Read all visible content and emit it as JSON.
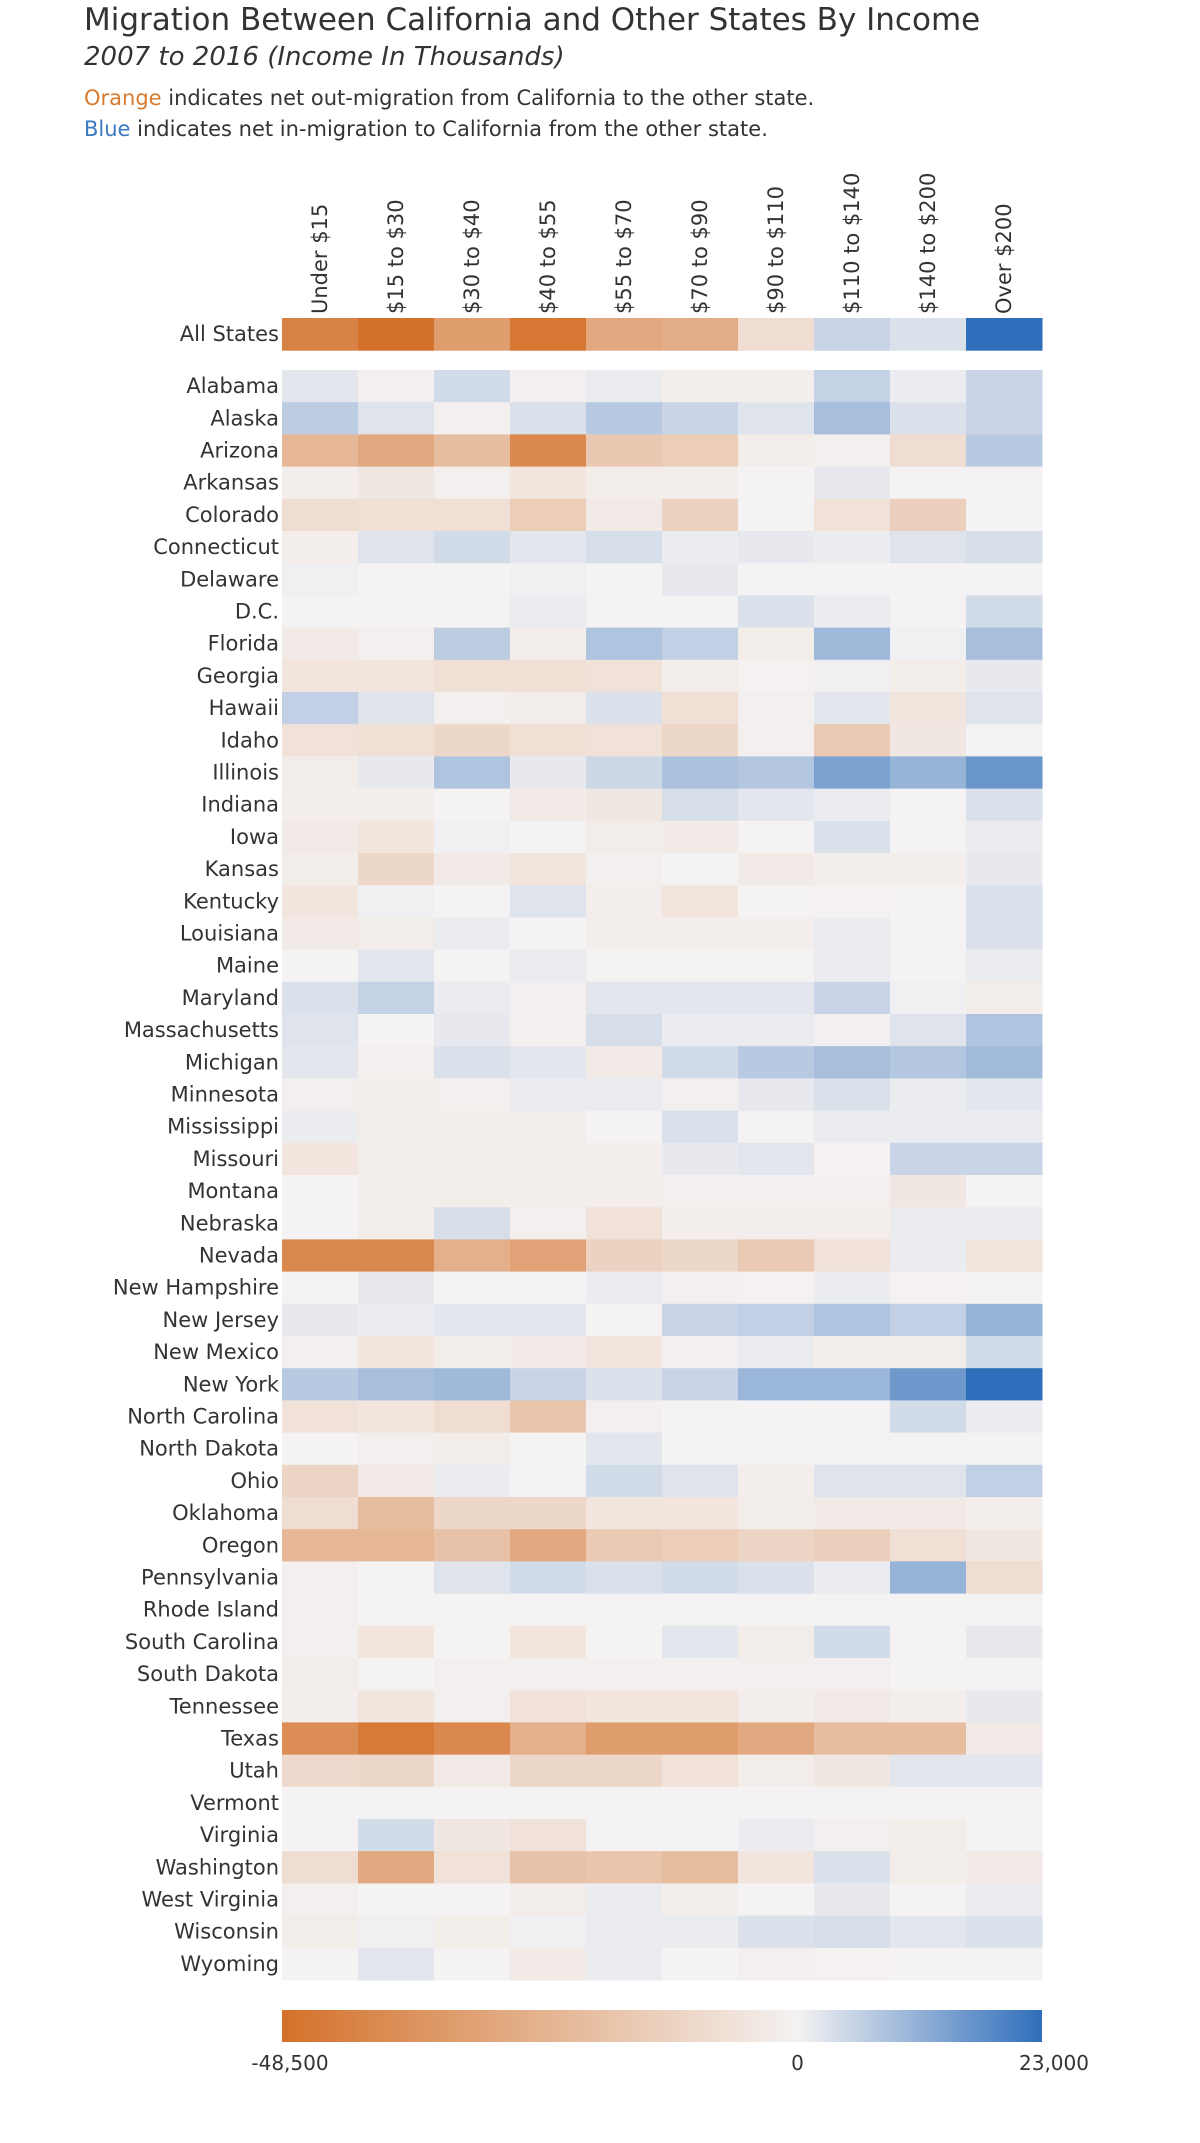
{
  "title": "Migration Between California and Other States By Income",
  "subtitle": "2007 to 2016 (Income In Thousands)",
  "note_orange": {
    "keyword": "Orange",
    "text": " indicates net out-migration from California to the other state."
  },
  "note_blue": {
    "keyword": "Blue",
    "text": " indicates net in-migration to California from the other state."
  },
  "colors": {
    "orange": "#d4712a",
    "neutral": "#f4f2f2",
    "blue": "#2f6ebb"
  },
  "chart_data": {
    "type": "heatmap",
    "columns": [
      "Under $15",
      "$15 to $30",
      "$30 to $40",
      "$40 to $55",
      "$55 to $70",
      "$70 to $90",
      "$90 to $110",
      "$110 to $140",
      "$140 to $200",
      "Over $200"
    ],
    "summary_row": {
      "label": "All States",
      "values": [
        -42000,
        -48500,
        -32000,
        -46000,
        -28000,
        -26000,
        -8000,
        5000,
        3000,
        23000
      ]
    },
    "rows": [
      {
        "label": "Alabama",
        "values": [
          2000,
          -1000,
          4000,
          -1000,
          1000,
          -1500,
          -1500,
          5500,
          1000,
          5000
        ]
      },
      {
        "label": "Alaska",
        "values": [
          6500,
          2500,
          -1000,
          3000,
          7000,
          5000,
          2500,
          9000,
          3000,
          5000
        ]
      },
      {
        "label": "Arizona",
        "values": [
          -22000,
          -28000,
          -20000,
          -40000,
          -16000,
          -14000,
          -2000,
          -1000,
          -8000,
          7000
        ]
      },
      {
        "label": "Arkansas",
        "values": [
          -1500,
          -4000,
          -1000,
          -5000,
          -2000,
          -1500,
          0,
          1500,
          0,
          0
        ]
      },
      {
        "label": "Colorado",
        "values": [
          -8000,
          -7000,
          -7000,
          -14000,
          -3000,
          -12000,
          0,
          -6000,
          -13000,
          0
        ]
      },
      {
        "label": "Connecticut",
        "values": [
          -1500,
          2500,
          4000,
          2000,
          3500,
          1000,
          1500,
          1000,
          2500,
          3500
        ]
      },
      {
        "label": "Delaware",
        "values": [
          500,
          0,
          0,
          500,
          0,
          1500,
          0,
          0,
          0,
          0
        ]
      },
      {
        "label": "D.C.",
        "values": [
          0,
          0,
          0,
          1000,
          0,
          0,
          3000,
          1000,
          0,
          4000
        ]
      },
      {
        "label": "Florida",
        "values": [
          -3000,
          -1000,
          6500,
          -2000,
          8000,
          6000,
          -2000,
          10000,
          500,
          9000
        ]
      },
      {
        "label": "Georgia",
        "values": [
          -5000,
          -5000,
          -7000,
          -7000,
          -6000,
          -2000,
          -500,
          500,
          -2000,
          1500
        ]
      },
      {
        "label": "Hawaii",
        "values": [
          6000,
          2500,
          -1000,
          -2000,
          3000,
          -7000,
          -1000,
          2000,
          -5000,
          2500
        ]
      },
      {
        "label": "Idaho",
        "values": [
          -6000,
          -7000,
          -10000,
          -7000,
          -6000,
          -10000,
          -1000,
          -15000,
          -4000,
          0
        ]
      },
      {
        "label": "Illinois",
        "values": [
          -2000,
          1500,
          8000,
          1500,
          4500,
          8500,
          7500,
          14000,
          11000,
          16000
        ]
      },
      {
        "label": "Indiana",
        "values": [
          -1500,
          -1500,
          0,
          -3000,
          -4000,
          3500,
          2000,
          1000,
          0,
          3000
        ]
      },
      {
        "label": "Iowa",
        "values": [
          -3000,
          -5000,
          500,
          0,
          -2000,
          -3000,
          0,
          3000,
          0,
          1000
        ]
      },
      {
        "label": "Kansas",
        "values": [
          -2000,
          -10000,
          -3000,
          -5000,
          -1000,
          0,
          -3000,
          -1500,
          -1500,
          1500
        ]
      },
      {
        "label": "Kentucky",
        "values": [
          -5000,
          500,
          0,
          2500,
          -1500,
          -5000,
          0,
          -500,
          0,
          3000
        ]
      },
      {
        "label": "Louisiana",
        "values": [
          -3000,
          -2000,
          1000,
          0,
          -1500,
          -1500,
          -1500,
          1000,
          0,
          3000
        ]
      },
      {
        "label": "Maine",
        "values": [
          0,
          2000,
          0,
          1000,
          0,
          0,
          0,
          1000,
          0,
          1000
        ]
      },
      {
        "label": "Maryland",
        "values": [
          3000,
          5500,
          1000,
          -1000,
          2000,
          2000,
          2000,
          5000,
          500,
          -2000
        ]
      },
      {
        "label": "Massachusetts",
        "values": [
          2500,
          0,
          1500,
          -1000,
          3500,
          1000,
          1000,
          -1000,
          2500,
          8000
        ]
      },
      {
        "label": "Michigan",
        "values": [
          2000,
          -1000,
          3000,
          2000,
          -3000,
          4000,
          7000,
          9000,
          7500,
          9500
        ]
      },
      {
        "label": "Minnesota",
        "values": [
          -1000,
          -2000,
          -1000,
          1000,
          1000,
          -1000,
          1500,
          3000,
          1000,
          2000
        ]
      },
      {
        "label": "Mississippi",
        "values": [
          1000,
          -2000,
          -2000,
          -1500,
          0,
          3000,
          0,
          1000,
          1000,
          1000
        ]
      },
      {
        "label": "Missouri",
        "values": [
          -5000,
          -2000,
          -2000,
          -1500,
          -1500,
          1500,
          2000,
          -500,
          5000,
          5000
        ]
      },
      {
        "label": "Montana",
        "values": [
          0,
          -2000,
          -1500,
          -2000,
          -1500,
          -1000,
          -1000,
          -1000,
          -4000,
          0
        ]
      },
      {
        "label": "Nebraska",
        "values": [
          0,
          -2000,
          3500,
          -1000,
          -6000,
          -1500,
          -1500,
          -1500,
          1000,
          1000
        ]
      },
      {
        "label": "Nevada",
        "values": [
          -40000,
          -40000,
          -25000,
          -30000,
          -12000,
          -10000,
          -15000,
          -6000,
          1000,
          -5000
        ]
      },
      {
        "label": "New Hampshire",
        "values": [
          0,
          1500,
          0,
          0,
          1000,
          -1000,
          -500,
          1000,
          -500,
          0
        ]
      },
      {
        "label": "New Jersey",
        "values": [
          1500,
          1000,
          2000,
          2000,
          0,
          5000,
          6000,
          8000,
          6000,
          11000
        ]
      },
      {
        "label": "New Mexico",
        "values": [
          -1000,
          -5000,
          -2000,
          -3000,
          -5000,
          -1000,
          1000,
          -1500,
          -2000,
          4000
        ]
      },
      {
        "label": "New York",
        "values": [
          7000,
          9000,
          10000,
          5000,
          3000,
          5000,
          10500,
          10500,
          15500,
          23000
        ]
      },
      {
        "label": "North Carolina",
        "values": [
          -6000,
          -5000,
          -8000,
          -17000,
          -1000,
          0,
          0,
          0,
          4000,
          1000
        ]
      },
      {
        "label": "North Dakota",
        "values": [
          0,
          -1000,
          -2000,
          0,
          2000,
          0,
          0,
          0,
          0,
          0
        ]
      },
      {
        "label": "Ohio",
        "values": [
          -11000,
          -3000,
          1000,
          0,
          4000,
          2500,
          -1500,
          2500,
          2500,
          6000
        ]
      },
      {
        "label": "Oklahoma",
        "values": [
          -8000,
          -20000,
          -10000,
          -10000,
          -5000,
          -5000,
          -2000,
          -3000,
          -3000,
          -1500
        ]
      },
      {
        "label": "Oregon",
        "values": [
          -22000,
          -22000,
          -18000,
          -28000,
          -15000,
          -14000,
          -11000,
          -13000,
          -7000,
          -4000
        ]
      },
      {
        "label": "Pennsylvania",
        "values": [
          -1000,
          0,
          2500,
          4000,
          3000,
          4000,
          3000,
          1000,
          11000,
          -8000
        ]
      },
      {
        "label": "Rhode Island",
        "values": [
          -1000,
          0,
          0,
          0,
          0,
          0,
          0,
          0,
          0,
          0
        ]
      },
      {
        "label": "South Carolina",
        "values": [
          -1000,
          -5000,
          0,
          -5000,
          0,
          2000,
          -2000,
          4000,
          0,
          1500
        ]
      },
      {
        "label": "South Dakota",
        "values": [
          -2000,
          0,
          -1000,
          -1000,
          -1000,
          -1000,
          -1000,
          -1000,
          0,
          0
        ]
      },
      {
        "label": "Tennessee",
        "values": [
          -1500,
          -5000,
          -1000,
          -6000,
          -5000,
          -5000,
          -1500,
          -3000,
          -1500,
          1500
        ]
      },
      {
        "label": "Texas",
        "values": [
          -38000,
          -45000,
          -40000,
          -25000,
          -32000,
          -32000,
          -28000,
          -20000,
          -20000,
          -3000
        ]
      },
      {
        "label": "Utah",
        "values": [
          -9000,
          -10000,
          -3000,
          -10000,
          -10000,
          -6000,
          -2000,
          -4000,
          2000,
          2000
        ]
      },
      {
        "label": "Vermont",
        "values": [
          0,
          0,
          0,
          0,
          0,
          0,
          0,
          0,
          0,
          0
        ]
      },
      {
        "label": "Virginia",
        "values": [
          0,
          4000,
          -4000,
          -6000,
          0,
          0,
          1000,
          -1000,
          -2000,
          0
        ]
      },
      {
        "label": "Washington",
        "values": [
          -8000,
          -28000,
          -6000,
          -18000,
          -17000,
          -20000,
          -5000,
          3000,
          -2000,
          -3000
        ]
      },
      {
        "label": "West Virginia",
        "values": [
          -1000,
          0,
          0,
          -2000,
          1000,
          -1500,
          0,
          1500,
          0,
          1000
        ]
      },
      {
        "label": "Wisconsin",
        "values": [
          -2000,
          500,
          -2000,
          500,
          1000,
          1000,
          3000,
          3500,
          2000,
          3000
        ]
      },
      {
        "label": "Wyoming",
        "values": [
          0,
          2000,
          0,
          -3000,
          1000,
          0,
          -1000,
          -500,
          0,
          0
        ]
      }
    ],
    "color_scale": {
      "min": -48500,
      "mid": 0,
      "max": 23000,
      "tick_labels": [
        "-48,500",
        "0",
        "23,000"
      ]
    }
  }
}
